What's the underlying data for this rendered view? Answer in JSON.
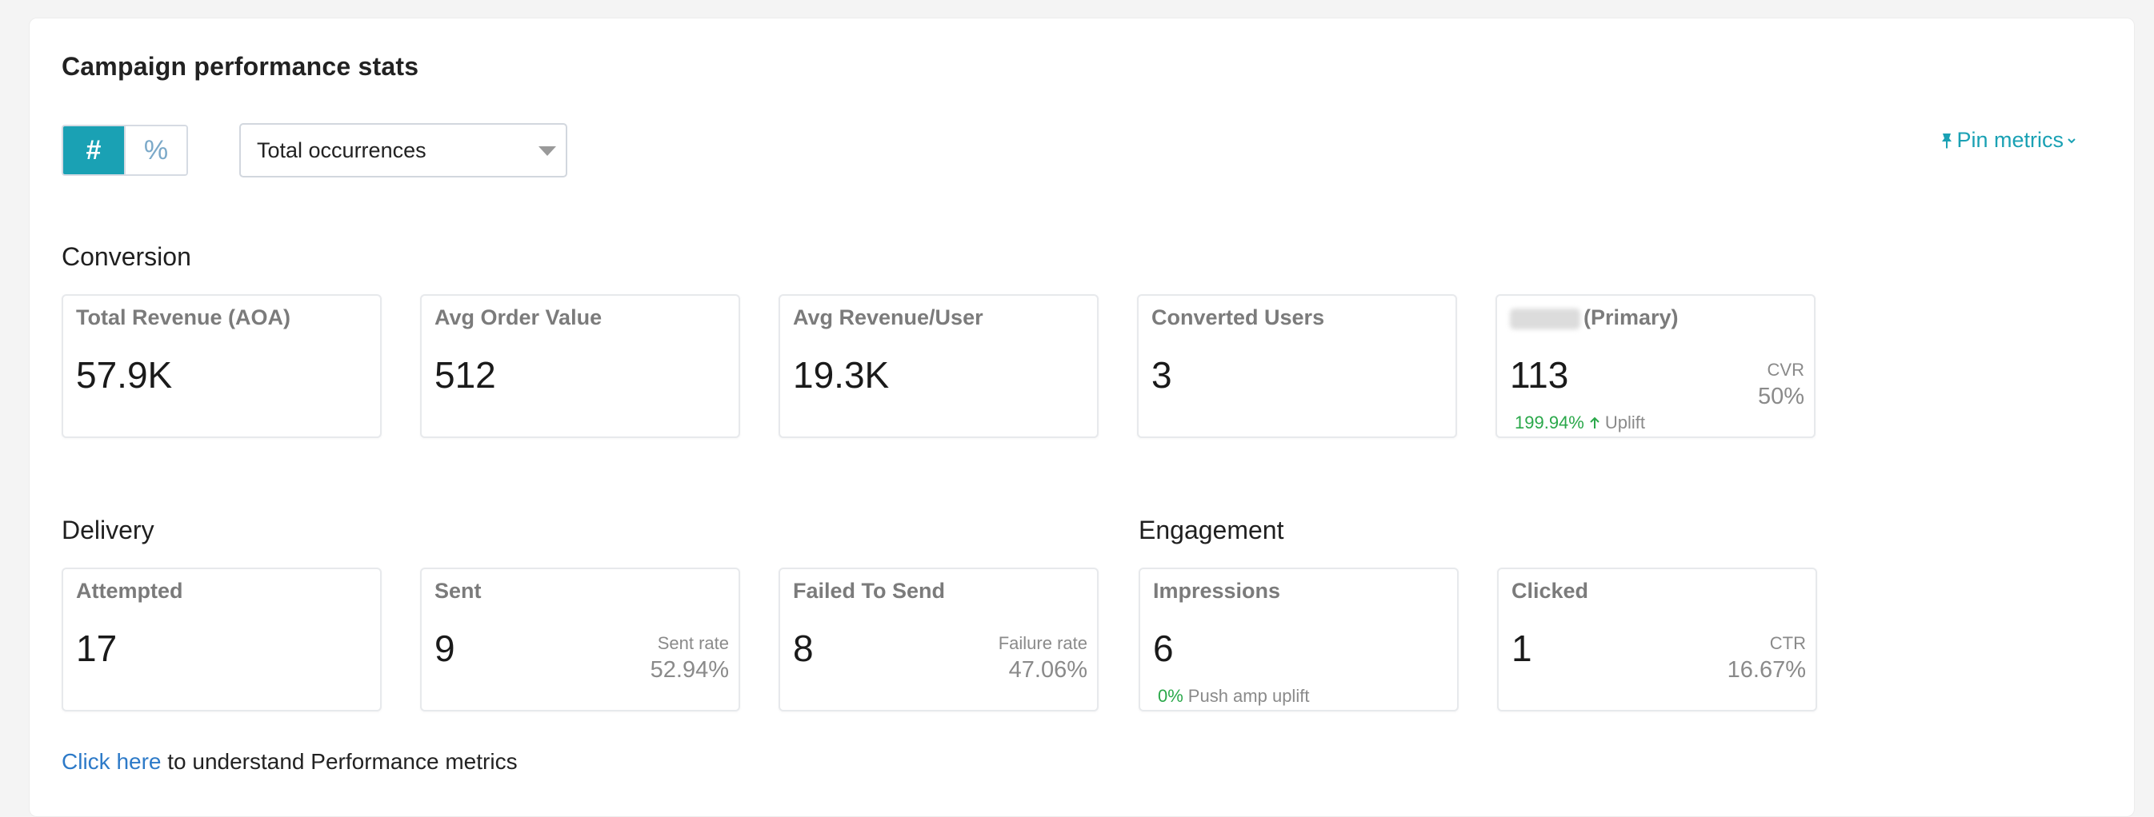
{
  "title": "Campaign performance stats",
  "toggle": {
    "count_symbol": "#",
    "percent_symbol": "%"
  },
  "select": {
    "value": "Total occurrences"
  },
  "pin_metrics": {
    "label": "Pin metrics"
  },
  "sections": {
    "conversion": "Conversion",
    "delivery": "Delivery",
    "engagement": "Engagement"
  },
  "conversion": {
    "total_revenue": {
      "label": "Total Revenue (AOA)",
      "value": "57.9K"
    },
    "avg_order_value": {
      "label": "Avg Order Value",
      "value": "512"
    },
    "avg_revenue_user": {
      "label": "Avg Revenue/User",
      "value": "19.3K"
    },
    "converted_users": {
      "label": "Converted Users",
      "value": "3"
    },
    "primary": {
      "label": "(Primary)",
      "value": "113",
      "right_label": "CVR",
      "right_value": "50%",
      "uplift_value": "199.94%",
      "uplift_label": "Uplift"
    }
  },
  "delivery": {
    "attempted": {
      "label": "Attempted",
      "value": "17"
    },
    "sent": {
      "label": "Sent",
      "value": "9",
      "right_label": "Sent rate",
      "right_value": "52.94%"
    },
    "failed": {
      "label": "Failed To Send",
      "value": "8",
      "right_label": "Failure rate",
      "right_value": "47.06%"
    }
  },
  "engagement": {
    "impressions": {
      "label": "Impressions",
      "value": "6",
      "uplift_value": "0%",
      "uplift_label": "Push amp uplift"
    },
    "clicked": {
      "label": "Clicked",
      "value": "1",
      "right_label": "CTR",
      "right_value": "16.67%"
    }
  },
  "help": {
    "link": "Click here",
    "text": " to understand Performance metrics"
  },
  "colors": {
    "accent": "#1aa1b4",
    "positive": "#2aa84a",
    "link": "#2d7ac8"
  }
}
